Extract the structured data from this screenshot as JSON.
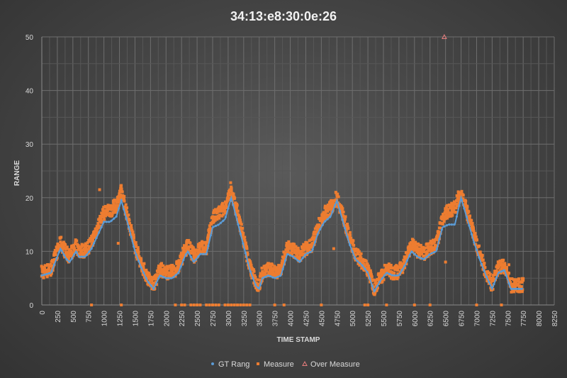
{
  "chart_data": {
    "type": "scatter",
    "title": "34:13:e8:30:0e:26",
    "xlabel": "TIME STAMP",
    "ylabel": "RANGE",
    "xlim": [
      0,
      8250
    ],
    "ylim": [
      0,
      50
    ],
    "x_ticks": [
      0,
      250,
      500,
      750,
      1000,
      1250,
      1500,
      1750,
      2000,
      2250,
      2500,
      2750,
      3000,
      3250,
      3500,
      3750,
      4000,
      4250,
      4500,
      4750,
      5000,
      5250,
      5500,
      5750,
      6000,
      6250,
      6500,
      6750,
      7000,
      7250,
      7500,
      7750,
      8000,
      8250
    ],
    "y_ticks": [
      0,
      10,
      20,
      30,
      40,
      50
    ],
    "grid": true,
    "legend_position": "bottom",
    "colors": {
      "gt": "#5b9bd5",
      "measure": "#ed7d31",
      "over": "#e87d7d"
    },
    "series": [
      {
        "name": "GT Rang",
        "style": "line-dots",
        "x": [
          0,
          150,
          250,
          300,
          400,
          450,
          550,
          600,
          700,
          800,
          900,
          1000,
          1100,
          1200,
          1280,
          1400,
          1500,
          1600,
          1700,
          1800,
          1900,
          2000,
          2100,
          2200,
          2300,
          2350,
          2450,
          2550,
          2650,
          2750,
          2850,
          2950,
          3050,
          3150,
          3250,
          3350,
          3450,
          3500,
          3550,
          3650,
          3750,
          3850,
          3950,
          4050,
          4150,
          4250,
          4350,
          4450,
          4550,
          4650,
          4750,
          4850,
          4950,
          5050,
          5150,
          5250,
          5350,
          5450,
          5550,
          5650,
          5750,
          5850,
          5950,
          6050,
          6150,
          6250,
          6350,
          6450,
          6550,
          6650,
          6750,
          6850,
          6950,
          7050,
          7150,
          7250,
          7350,
          7450,
          7550,
          7650,
          7750
        ],
        "y": [
          5.5,
          6,
          9,
          10.5,
          8.5,
          8,
          10,
          9,
          9,
          10.5,
          13,
          15.5,
          15.5,
          16.5,
          19.5,
          14.5,
          10,
          7,
          4.5,
          3,
          5.5,
          5,
          5,
          6,
          9,
          10,
          8,
          9.5,
          9.5,
          14.5,
          15,
          16,
          20,
          15.5,
          11,
          6.5,
          3.5,
          3,
          5,
          5.5,
          5,
          5.5,
          9.5,
          9,
          8,
          9.5,
          10,
          13.5,
          15.5,
          16.5,
          19.5,
          15.5,
          11.5,
          8.5,
          7.5,
          6,
          2.5,
          4.5,
          6,
          5.5,
          5.5,
          7.5,
          10,
          9,
          8.5,
          9.5,
          10,
          14.5,
          15,
          15,
          20,
          16,
          12,
          8.5,
          5.5,
          3,
          6,
          6.5,
          3,
          3,
          3
        ]
      },
      {
        "name": "Measure",
        "style": "markers",
        "x": [
          0,
          150,
          250,
          300,
          400,
          450,
          550,
          600,
          700,
          800,
          900,
          1000,
          1100,
          1200,
          1280,
          1400,
          1500,
          1600,
          1700,
          1800,
          1900,
          2000,
          2100,
          2200,
          2300,
          2350,
          2450,
          2550,
          2650,
          2750,
          2850,
          2950,
          3050,
          3150,
          3250,
          3350,
          3450,
          3500,
          3550,
          3650,
          3750,
          3850,
          3950,
          4050,
          4150,
          4250,
          4350,
          4450,
          4550,
          4650,
          4750,
          4850,
          4950,
          5050,
          5150,
          5250,
          5350,
          5450,
          5550,
          5650,
          5750,
          5850,
          5950,
          6050,
          6150,
          6250,
          6350,
          6450,
          6550,
          6650,
          6750,
          6850,
          6950,
          7050,
          7150,
          7250,
          7350,
          7450,
          7550,
          7650,
          7750
        ],
        "y": [
          6,
          6.5,
          10,
          11.5,
          9.5,
          9,
          11,
          10,
          10,
          11.5,
          14.5,
          17,
          17.5,
          18.5,
          21,
          15.5,
          11,
          7.5,
          5,
          3.5,
          6.5,
          6,
          6,
          7,
          10,
          11,
          9,
          10.5,
          10.5,
          16,
          17,
          18,
          21,
          17,
          12,
          7,
          4,
          3.5,
          6,
          6.5,
          6,
          6.5,
          10.5,
          10,
          9,
          10.5,
          11,
          14.5,
          17,
          18,
          20,
          16.5,
          12.5,
          9.5,
          8,
          6.5,
          3,
          5,
          6.5,
          6,
          6,
          8,
          11,
          10,
          9.5,
          10.5,
          11,
          16,
          17.5,
          18,
          21,
          17,
          13,
          9.5,
          6,
          3.5,
          7,
          7,
          3.5,
          3.5,
          3.5
        ]
      },
      {
        "name": "Over Measure",
        "style": "triangle",
        "x": [
          6480
        ],
        "y": [
          50
        ]
      }
    ],
    "zero_readings_x": [
      800,
      1280,
      2150,
      2250,
      2300,
      2400,
      2450,
      2500,
      2550,
      2650,
      2700,
      2750,
      2800,
      2850,
      2950,
      3000,
      3050,
      3100,
      3150,
      3200,
      3250,
      3300,
      3350,
      3750,
      3900,
      4500,
      5200,
      5250,
      5550,
      6000,
      6250,
      7000,
      7400
    ]
  }
}
